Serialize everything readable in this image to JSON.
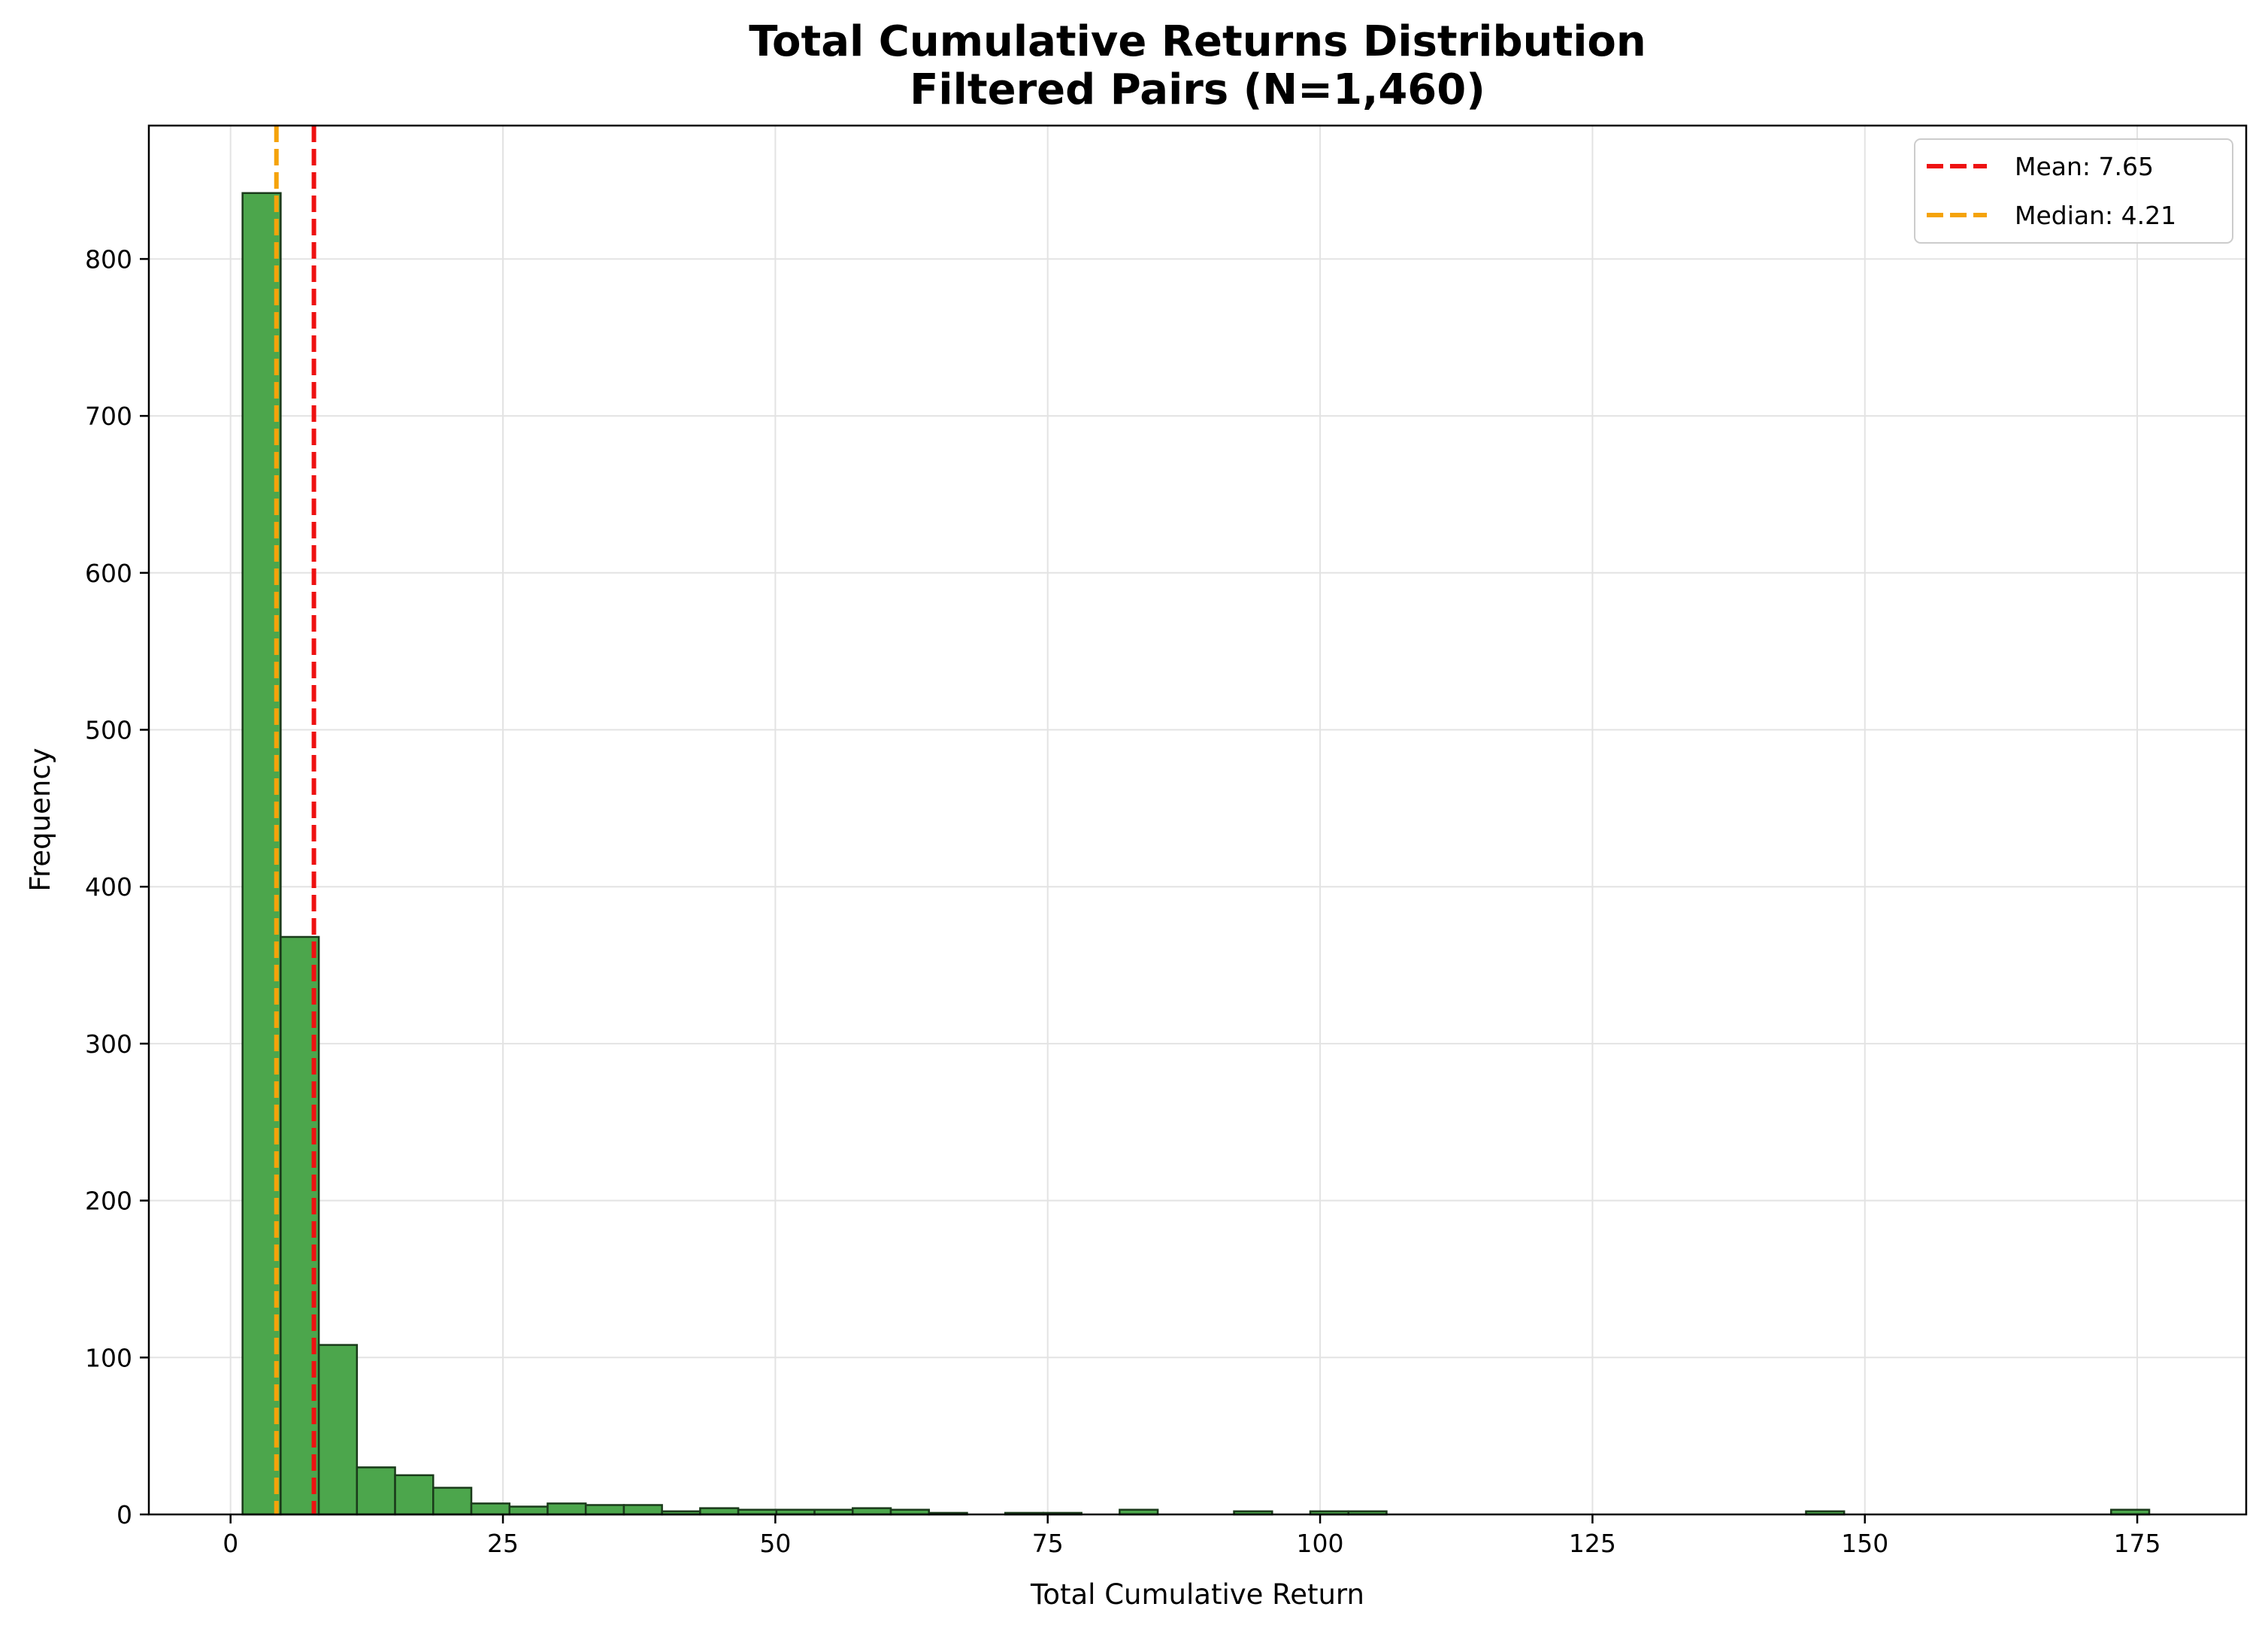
{
  "chart_data": {
    "type": "bar",
    "title": "Total Cumulative Returns Distribution",
    "subtitle": "Filtered Pairs (N=1,460)",
    "xlabel": "Total Cumulative Return",
    "ylabel": "Frequency",
    "xlim": [
      -7.5,
      185
    ],
    "ylim": [
      0,
      885
    ],
    "xticks": [
      0,
      25,
      50,
      75,
      100,
      125,
      150,
      175
    ],
    "yticks": [
      0,
      100,
      200,
      300,
      400,
      500,
      600,
      700,
      800
    ],
    "grid": true,
    "legend_position": "top-right",
    "bin_edges": [
      1.1,
      4.6,
      8.1,
      11.6,
      15.1,
      18.6,
      22.1,
      25.6,
      29.1,
      32.6,
      36.1,
      39.6,
      43.1,
      46.6,
      50.1,
      53.6,
      57.1,
      60.6,
      64.1,
      67.6,
      71.1,
      74.6,
      78.1,
      81.6,
      85.1,
      88.6,
      92.1,
      95.6,
      99.1,
      102.6,
      106.1,
      109.6,
      113.1,
      116.6,
      120.1,
      123.6,
      127.1,
      130.6,
      134.1,
      137.6,
      141.1,
      144.6,
      148.1,
      151.6,
      155.1,
      158.6,
      162.1,
      165.6,
      169.1,
      172.6,
      176.1
    ],
    "values": [
      842,
      368,
      108,
      30,
      25,
      17,
      7,
      5,
      7,
      6,
      6,
      2,
      4,
      3,
      3,
      3,
      4,
      3,
      1,
      0,
      1,
      1,
      0,
      3,
      0,
      0,
      2,
      0,
      2,
      2,
      0,
      0,
      0,
      0,
      0,
      0,
      0,
      0,
      0,
      0,
      0,
      2,
      0,
      0,
      0,
      0,
      0,
      0,
      0,
      3
    ],
    "bar_color": "#4ca64c",
    "bar_edge_color": "#1a3a1a",
    "reference_lines": [
      {
        "label": "Mean: 7.65",
        "value": 7.65,
        "color": "#ee1111"
      },
      {
        "label": "Median: 4.21",
        "value": 4.21,
        "color": "#f5a30a"
      }
    ]
  }
}
